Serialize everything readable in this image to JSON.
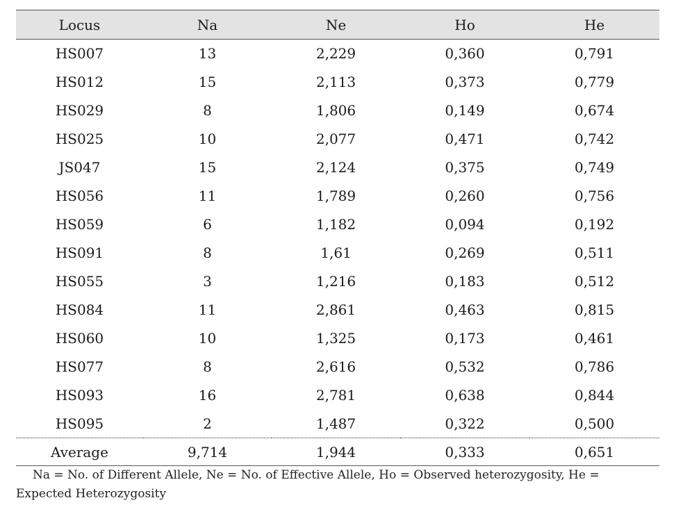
{
  "table": {
    "headers": [
      "Locus",
      "Na",
      "Ne",
      "Ho",
      "He"
    ],
    "rows": [
      [
        "HS007",
        "13",
        "2,229",
        "0,360",
        "0,791"
      ],
      [
        "HS012",
        "15",
        "2,113",
        "0,373",
        "0,779"
      ],
      [
        "HS029",
        "8",
        "1,806",
        "0,149",
        "0,674"
      ],
      [
        "HS025",
        "10",
        "2,077",
        "0,471",
        "0,742"
      ],
      [
        "JS047",
        "15",
        "2,124",
        "0,375",
        "0,749"
      ],
      [
        "HS056",
        "11",
        "1,789",
        "0,260",
        "0,756"
      ],
      [
        "HS059",
        "6",
        "1,182",
        "0,094",
        "0,192"
      ],
      [
        "HS091",
        "8",
        "1,61",
        "0,269",
        "0,511"
      ],
      [
        "HS055",
        "3",
        "1,216",
        "0,183",
        "0,512"
      ],
      [
        "HS084",
        "11",
        "2,861",
        "0,463",
        "0,815"
      ],
      [
        "HS060",
        "10",
        "1,325",
        "0,173",
        "0,461"
      ],
      [
        "HS077",
        "8",
        "2,616",
        "0,532",
        "0,786"
      ],
      [
        "HS093",
        "16",
        "2,781",
        "0,638",
        "0,844"
      ],
      [
        "HS095",
        "2",
        "1,487",
        "0,322",
        "0,500"
      ]
    ],
    "average": [
      "Average",
      "9,714",
      "1,944",
      "0,333",
      "0,651"
    ]
  },
  "footnote": {
    "line1": "Na = No. of Different Allele, Ne = No. of Effective Allele, Ho = Observed heterozygosity, He =",
    "line2": "Expected Heterozygosity"
  }
}
